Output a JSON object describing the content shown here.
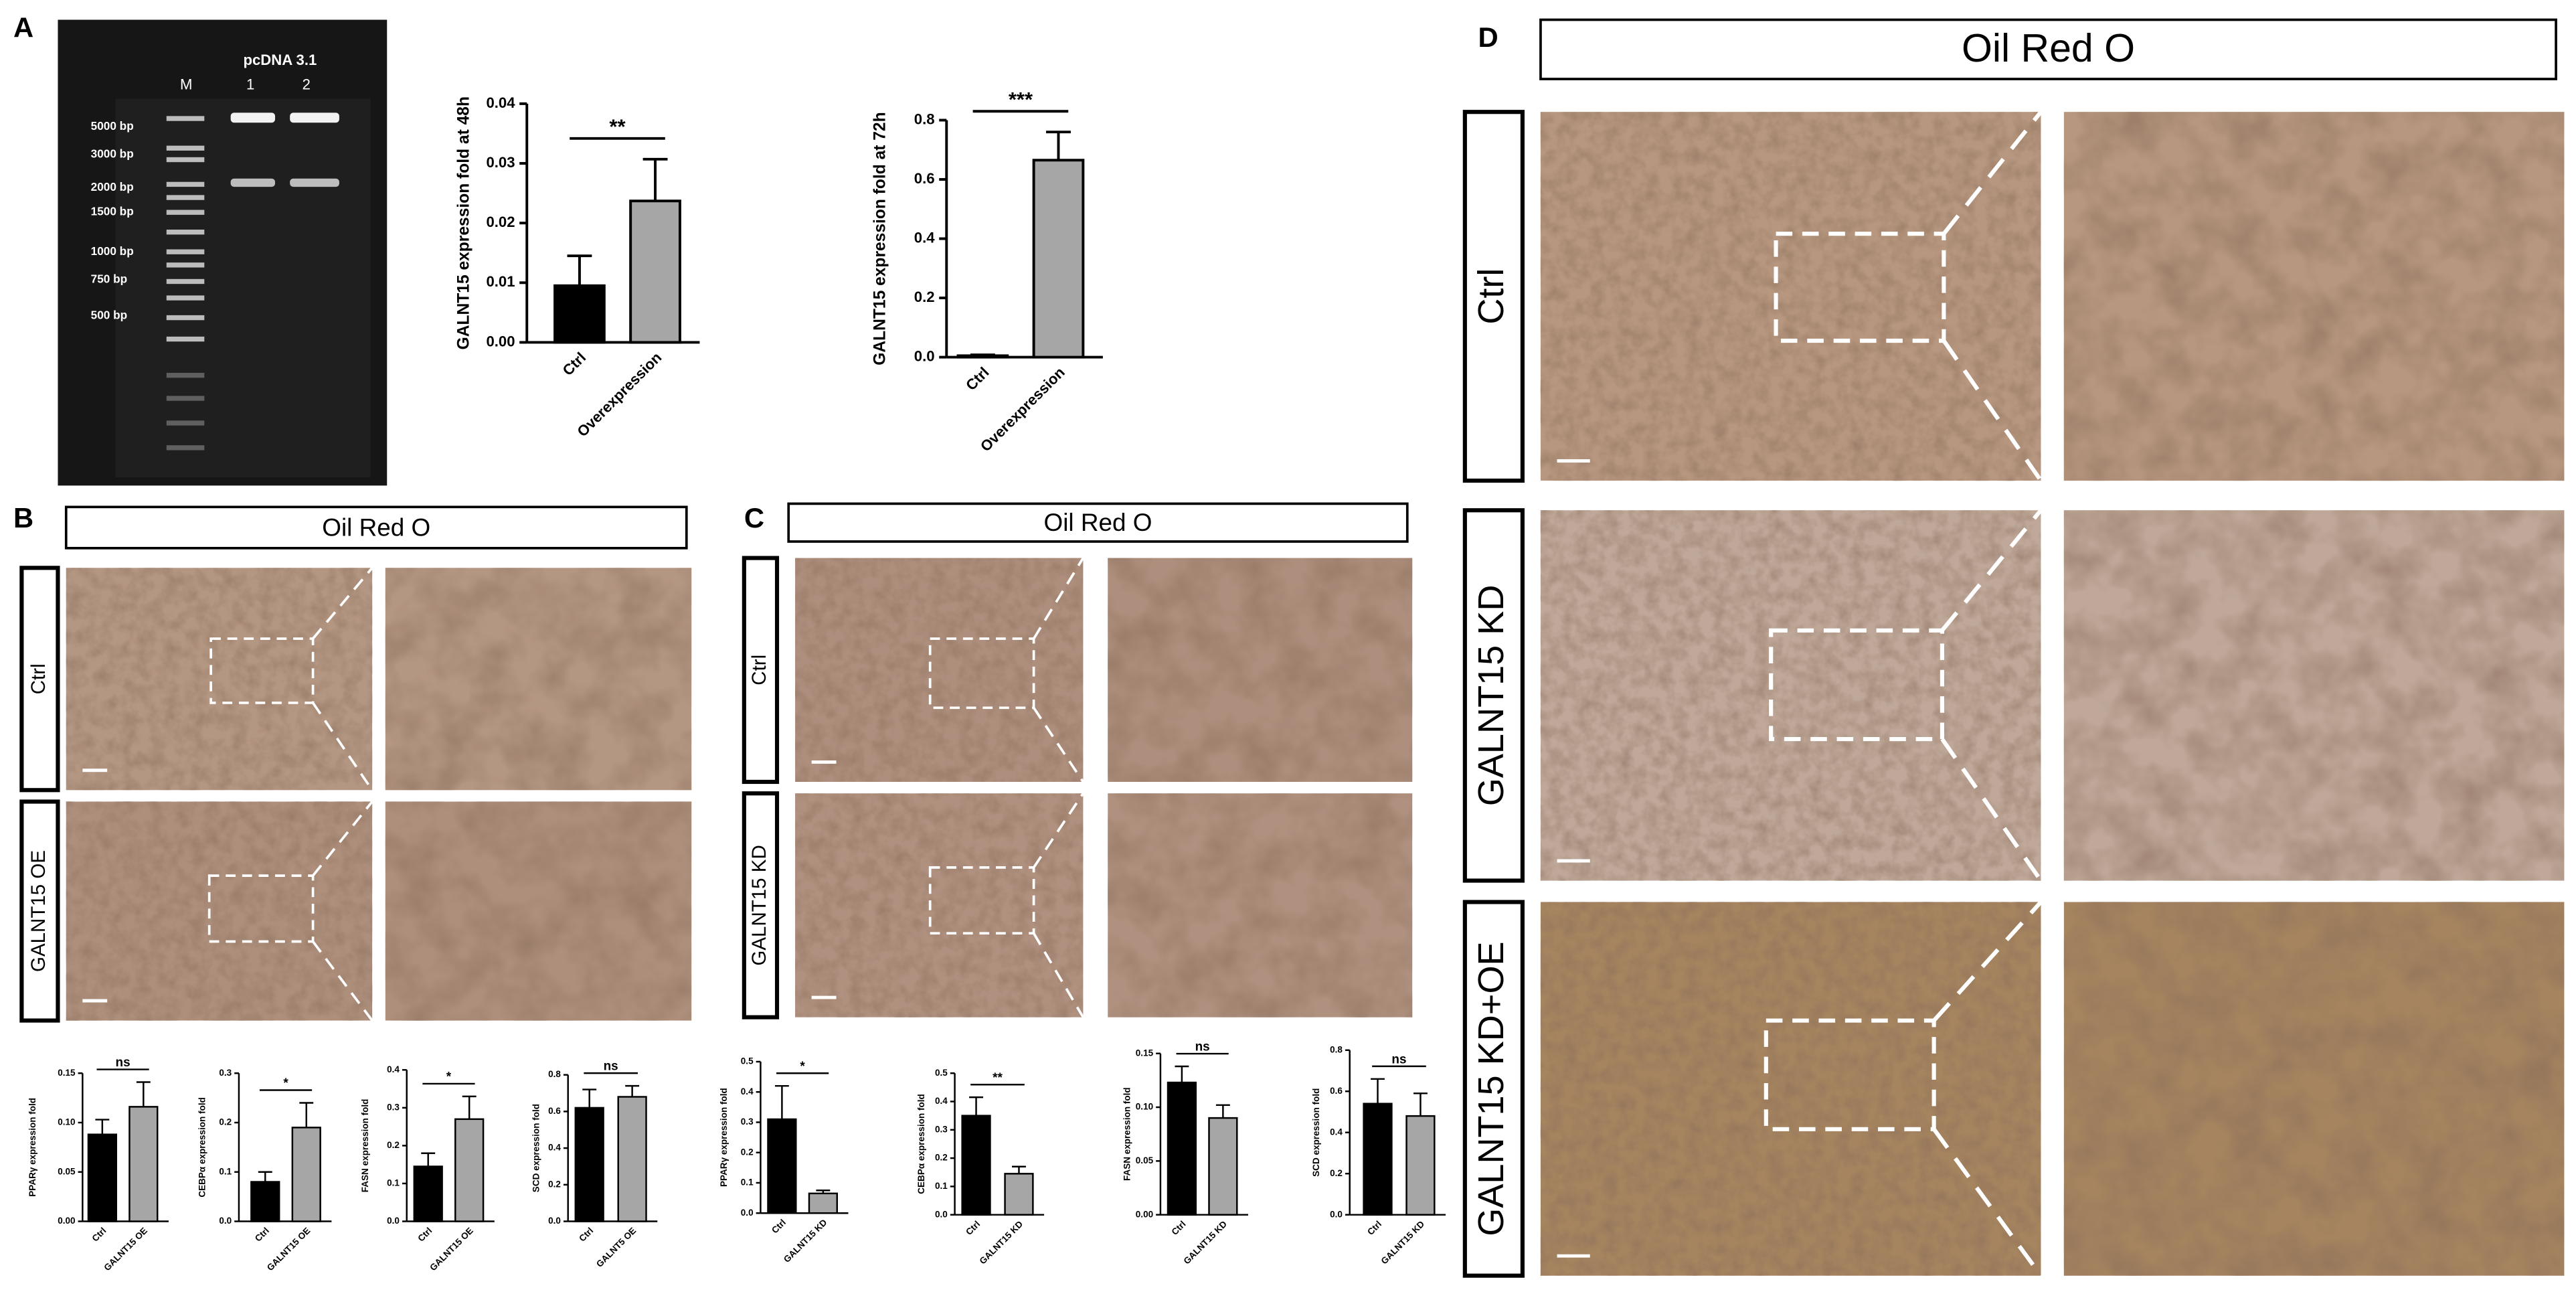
{
  "panel_labels": [
    "A",
    "B",
    "C",
    "D"
  ],
  "gel": {
    "vector": "pcDNA 3.1",
    "lane_labels": [
      "M",
      "1",
      "2"
    ],
    "markers": [
      "5000 bp",
      "3000 bp",
      "2000 bp",
      "1500 bp",
      "1000 bp",
      "750 bp",
      "500 bp"
    ]
  },
  "micrographs": {
    "B": {
      "stain": "Oil Red O",
      "rows": [
        "Ctrl",
        "GALNT15 OE"
      ]
    },
    "C": {
      "stain": "Oil Red O",
      "rows": [
        "Ctrl",
        "GALNT15 KD"
      ]
    },
    "D": {
      "stain": "Oil Red O",
      "rows": [
        "Ctrl",
        "GALNT15 KD",
        "GALNT15 KD+OE"
      ]
    }
  },
  "chart_data": [
    {
      "type": "bar",
      "ylabel": "GALNT15 expression fold at 48h",
      "categories": [
        "Ctrl",
        "Overexpression"
      ],
      "values": [
        0.0095,
        0.0237
      ],
      "errors": [
        0.005,
        0.007
      ],
      "colors": [
        "#000000",
        "#a6a6a6"
      ],
      "ylim": [
        0,
        0.04
      ],
      "yticks": [
        {
          "value": 0,
          "label": "0.00"
        },
        0.01,
        0.02,
        0.03,
        0.04
      ],
      "annotation": "**"
    },
    {
      "type": "bar",
      "ylabel": "GALNT15 expression fold at 72h",
      "categories": [
        "Ctrl",
        "Overexpression"
      ],
      "values": [
        0.005,
        0.665
      ],
      "errors": [
        0.003,
        0.095
      ],
      "colors": [
        "#000000",
        "#a6a6a6"
      ],
      "ylim": [
        0,
        0.8
      ],
      "yticks": [
        {
          "value": 0,
          "label": "0.0"
        },
        0.2,
        0.4,
        0.6,
        0.8
      ],
      "annotation": "***"
    },
    {
      "type": "bar",
      "ylabel": "PPARγ expression fold",
      "categories": [
        "Ctrl",
        "GALNT15 OE"
      ],
      "values": [
        0.088,
        0.116
      ],
      "errors": [
        0.015,
        0.025
      ],
      "colors": [
        "#000000",
        "#a6a6a6"
      ],
      "ylim": [
        0,
        0.15
      ],
      "yticks": [
        {
          "value": 0,
          "label": "0.00"
        },
        0.05,
        {
          "value": 0.1,
          "label": "0.10"
        },
        0.15
      ],
      "annotation": "ns"
    },
    {
      "type": "bar",
      "ylabel": "CEBPα expression fold",
      "categories": [
        "Ctrl",
        "GALNT15 OE"
      ],
      "values": [
        0.08,
        0.19
      ],
      "errors": [
        0.02,
        0.05
      ],
      "colors": [
        "#000000",
        "#a6a6a6"
      ],
      "ylim": [
        0,
        0.3
      ],
      "yticks": [
        {
          "value": 0,
          "label": "0.0"
        },
        0.1,
        0.2,
        0.3
      ],
      "annotation": "*"
    },
    {
      "type": "bar",
      "ylabel": "FASN expression fold",
      "categories": [
        "Ctrl",
        "GALNT15 OE"
      ],
      "values": [
        0.145,
        0.27
      ],
      "errors": [
        0.035,
        0.06
      ],
      "colors": [
        "#000000",
        "#a6a6a6"
      ],
      "ylim": [
        0,
        0.4
      ],
      "yticks": [
        {
          "value": 0,
          "label": "0.0"
        },
        0.1,
        0.2,
        0.3,
        0.4
      ],
      "annotation": "*"
    },
    {
      "type": "bar",
      "ylabel": "SCD expression fold",
      "categories": [
        "Ctrl",
        "GALNT5 OE"
      ],
      "values": [
        0.62,
        0.68
      ],
      "errors": [
        0.1,
        0.06
      ],
      "colors": [
        "#000000",
        "#a6a6a6"
      ],
      "ylim": [
        0,
        0.8
      ],
      "yticks": [
        {
          "value": 0,
          "label": "0.0"
        },
        0.2,
        0.4,
        0.6,
        0.8
      ],
      "annotation": "ns"
    },
    {
      "type": "bar",
      "ylabel": "PPARγ expression fold",
      "categories": [
        "Ctrl",
        "GALNT15 KD"
      ],
      "values": [
        0.31,
        0.065
      ],
      "errors": [
        0.11,
        0.01
      ],
      "colors": [
        "#000000",
        "#a6a6a6"
      ],
      "ylim": [
        0,
        0.5
      ],
      "yticks": [
        {
          "value": 0,
          "label": "0.0"
        },
        0.1,
        0.2,
        0.3,
        0.4,
        0.5
      ],
      "annotation": "*"
    },
    {
      "type": "bar",
      "ylabel": "CEBPα expression fold",
      "categories": [
        "Ctrl",
        "GALNT15 KD"
      ],
      "values": [
        0.35,
        0.145
      ],
      "errors": [
        0.065,
        0.025
      ],
      "colors": [
        "#000000",
        "#a6a6a6"
      ],
      "ylim": [
        0,
        0.5
      ],
      "yticks": [
        {
          "value": 0,
          "label": "0.0"
        },
        0.1,
        0.2,
        0.3,
        0.4,
        0.5
      ],
      "annotation": "**"
    },
    {
      "type": "bar",
      "ylabel": "FASN expression fold",
      "categories": [
        "Ctrl",
        "GALNT15 KD"
      ],
      "values": [
        0.123,
        0.09
      ],
      "errors": [
        0.015,
        0.012
      ],
      "colors": [
        "#000000",
        "#a6a6a6"
      ],
      "ylim": [
        0,
        0.15
      ],
      "yticks": [
        {
          "value": 0,
          "label": "0.00"
        },
        0.05,
        {
          "value": 0.1,
          "label": "0.10"
        },
        0.15
      ],
      "annotation": "ns"
    },
    {
      "type": "bar",
      "ylabel": "SCD expression fold",
      "categories": [
        "Ctrl",
        "GALNT15 KD"
      ],
      "values": [
        0.54,
        0.48
      ],
      "errors": [
        0.12,
        0.11
      ],
      "colors": [
        "#000000",
        "#a6a6a6"
      ],
      "ylim": [
        0,
        0.8
      ],
      "yticks": [
        {
          "value": 0,
          "label": "0.0"
        },
        0.2,
        0.4,
        0.6,
        0.8
      ],
      "annotation": "ns"
    }
  ]
}
